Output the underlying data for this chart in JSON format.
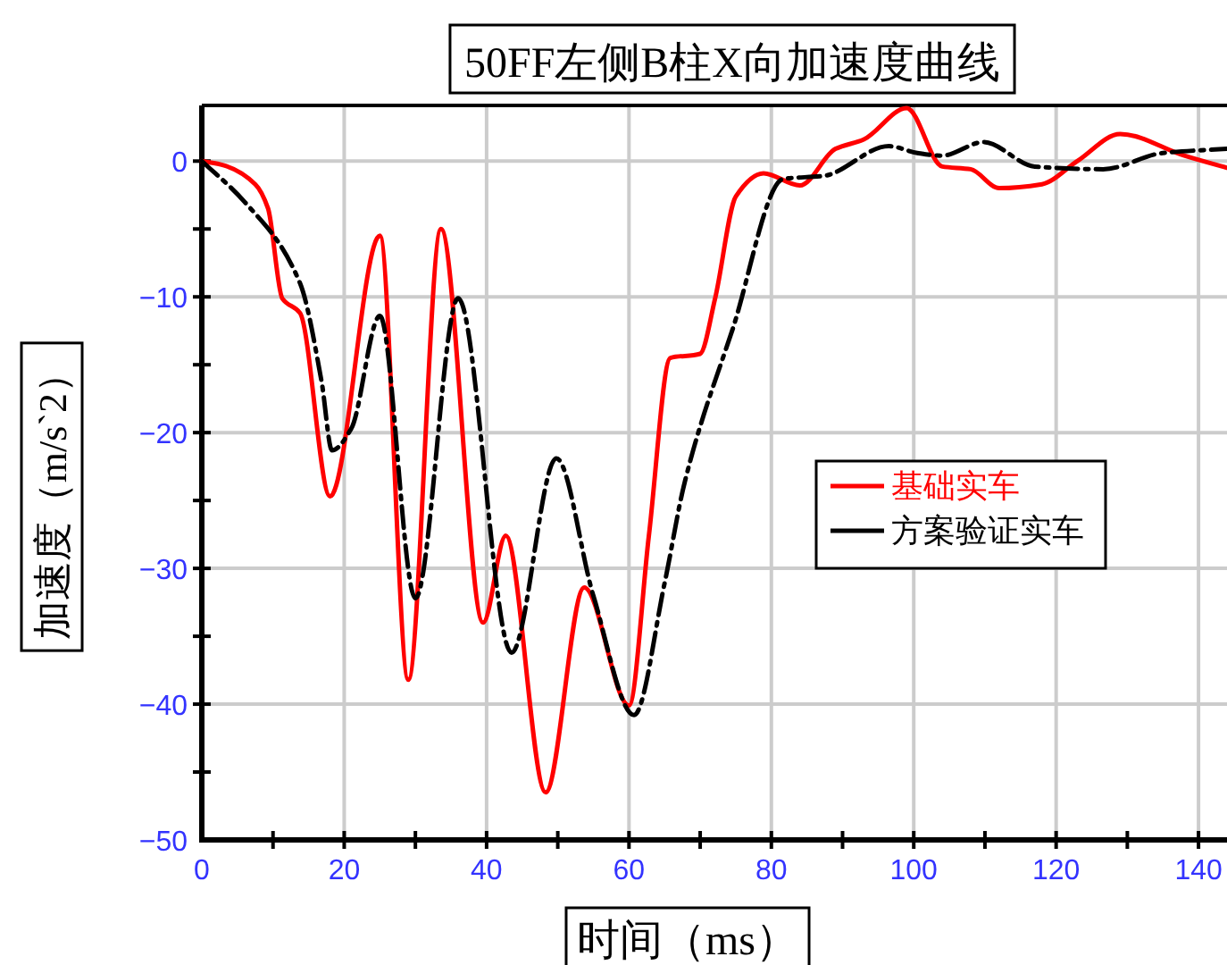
{
  "chart_data": {
    "type": "line",
    "title": "50FF左侧B柱X向加速度曲线",
    "xlabel": "时间（ms）",
    "ylabel": "加速度（m/s`2）",
    "xlim": [
      0,
      144
    ],
    "ylim": [
      -50,
      4.1
    ],
    "xticks": [
      0,
      {
        "value": 10,
        "label": null
      },
      20,
      {
        "value": 30,
        "label": null
      },
      40,
      {
        "value": 50,
        "label": null
      },
      60,
      {
        "value": 70,
        "label": null
      },
      80,
      {
        "value": 90,
        "label": null
      },
      100,
      {
        "value": 110,
        "label": null
      },
      120,
      {
        "value": 130,
        "label": null
      },
      140
    ],
    "yticks": [
      -50,
      {
        "value": -45,
        "label": null
      },
      -40,
      {
        "value": -35,
        "label": null
      },
      -30,
      {
        "value": -25,
        "label": null
      },
      -20,
      {
        "value": -15,
        "label": null
      },
      -10,
      {
        "value": -5,
        "label": null
      },
      0
    ],
    "grid": true,
    "legend": "right",
    "series": [
      {
        "name": "基础实车",
        "color": "#ff0000",
        "line_style": "solid",
        "x": [
          0,
          3,
          7.5,
          9.3,
          11.3,
          13.8,
          18,
          25,
          29,
          33.6,
          39.5,
          42.7,
          48.3,
          53.7,
          60,
          62.8,
          65.8,
          70,
          72.1,
          75,
          78.9,
          84,
          89,
          93,
          99,
          104,
          108,
          112,
          118,
          123,
          129,
          138,
          144
        ],
        "values": [
          0,
          -0.3,
          -1.7,
          -3.5,
          -10.1,
          -11.2,
          -24.7,
          -5.5,
          -38.2,
          -5,
          -34,
          -27.6,
          -46.5,
          -31.4,
          -40.1,
          -27.6,
          -14.5,
          -14.2,
          -10.1,
          -2.6,
          -0.9,
          -1.8,
          0.9,
          1.6,
          3.9,
          -0.4,
          -0.6,
          -2,
          -1.7,
          0,
          2,
          0.4,
          -0.5
        ]
      },
      {
        "name": "方案验证实车",
        "color": "#000000",
        "line_style": "dashdot",
        "x": [
          0,
          6,
          13.8,
          16.8,
          18.3,
          21,
          25,
          30,
          36,
          43.5,
          49.8,
          55,
          60.7,
          65,
          67.8,
          74.6,
          81.7,
          87.3,
          96.5,
          100.5,
          104,
          109.8,
          117,
          126.6,
          135,
          144
        ],
        "values": [
          0,
          -3,
          -9,
          -16.2,
          -21.3,
          -19.7,
          -11.4,
          -32.2,
          -10.1,
          -36.2,
          -21.9,
          -32,
          -40.8,
          -31.1,
          -23.7,
          -12.3,
          -1.3,
          -1.1,
          1.1,
          0.6,
          0.4,
          1.4,
          -0.4,
          -0.6,
          0.6,
          0.9
        ]
      }
    ]
  }
}
